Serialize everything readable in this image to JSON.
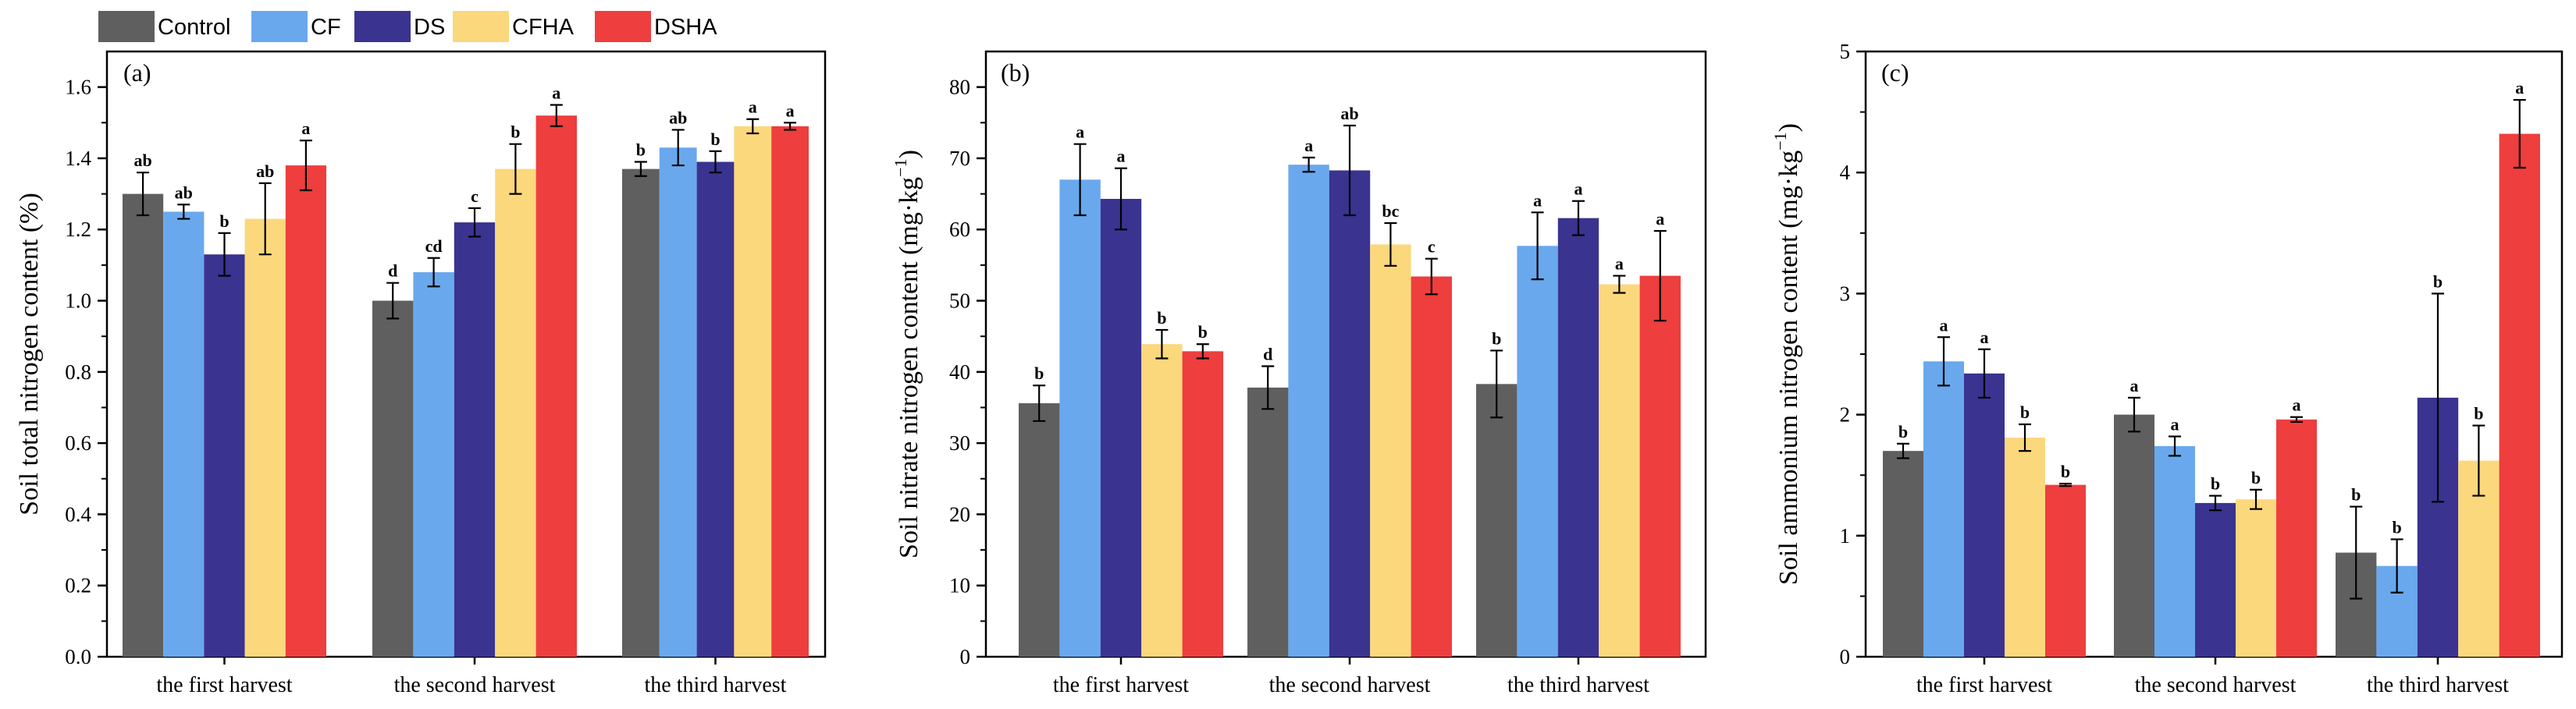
{
  "legend": {
    "items": [
      {
        "name": "Control",
        "color": "#5f5f5f"
      },
      {
        "name": "CF",
        "color": "#69a8ed"
      },
      {
        "name": "DS",
        "color": "#3a3390"
      },
      {
        "name": "CFHA",
        "color": "#fbd87c"
      },
      {
        "name": "DSHA",
        "color": "#ee3e3e"
      }
    ]
  },
  "chart_data": [
    {
      "type": "bar",
      "panel_label": "(a)",
      "ylabel": "Soil total nitrogen content (%)",
      "ylabel_html": "Soil total nitrogen content (%)",
      "ylim": [
        0,
        1.7
      ],
      "yticks": [
        "0.0",
        "0.2",
        "0.4",
        "0.6",
        "0.8",
        "1.0",
        "1.2",
        "1.4",
        "1.6"
      ],
      "ytick_values": [
        0,
        0.2,
        0.4,
        0.6,
        0.8,
        1.0,
        1.2,
        1.4,
        1.6
      ],
      "categories": [
        "the first harvest",
        "the second harvest",
        "the third harvest"
      ],
      "series": [
        {
          "name": "Control",
          "values": [
            1.3,
            1.0,
            1.37
          ],
          "errors": [
            0.06,
            0.05,
            0.02
          ],
          "letters": [
            "ab",
            "d",
            "b"
          ]
        },
        {
          "name": "CF",
          "values": [
            1.25,
            1.08,
            1.43
          ],
          "errors": [
            0.02,
            0.04,
            0.05
          ],
          "letters": [
            "ab",
            "cd",
            "ab"
          ]
        },
        {
          "name": "DS",
          "values": [
            1.13,
            1.22,
            1.39
          ],
          "errors": [
            0.06,
            0.04,
            0.03
          ],
          "letters": [
            "b",
            "c",
            "b"
          ]
        },
        {
          "name": "CFHA",
          "values": [
            1.23,
            1.37,
            1.49
          ],
          "errors": [
            0.1,
            0.07,
            0.02
          ],
          "letters": [
            "ab",
            "b",
            "a"
          ]
        },
        {
          "name": "DSHA",
          "values": [
            1.38,
            1.52,
            1.49
          ],
          "errors": [
            0.07,
            0.03,
            0.01
          ],
          "letters": [
            "a",
            "a",
            "a"
          ]
        }
      ]
    },
    {
      "type": "bar",
      "panel_label": "(b)",
      "ylabel": "Soil nitrate nitrogen content (mg·kg-1)",
      "ylabel_main": "Soil nitrate nitrogen content (mg·kg",
      "ylabel_sup": "−1",
      "ylabel_end": ")",
      "ylim": [
        0,
        85
      ],
      "yticks": [
        "0",
        "10",
        "20",
        "30",
        "40",
        "50",
        "60",
        "70",
        "80"
      ],
      "ytick_values": [
        0,
        10,
        20,
        30,
        40,
        50,
        60,
        70,
        80
      ],
      "categories": [
        "the first harvest",
        "the second harvest",
        "the third harvest"
      ],
      "series": [
        {
          "name": "Control",
          "values": [
            35.6,
            37.8,
            38.3
          ],
          "errors": [
            2.5,
            3.0,
            4.7
          ],
          "letters": [
            "b",
            "d",
            "b"
          ]
        },
        {
          "name": "CF",
          "values": [
            67.0,
            69.1,
            57.7
          ],
          "errors": [
            5.0,
            1.0,
            4.7
          ],
          "letters": [
            "a",
            "a",
            "a"
          ]
        },
        {
          "name": "DS",
          "values": [
            64.3,
            68.3,
            61.6
          ],
          "errors": [
            4.3,
            6.3,
            2.4
          ],
          "letters": [
            "a",
            "ab",
            "a"
          ]
        },
        {
          "name": "CFHA",
          "values": [
            43.9,
            57.9,
            52.3
          ],
          "errors": [
            2.0,
            3.0,
            1.2
          ],
          "letters": [
            "b",
            "bc",
            "a"
          ]
        },
        {
          "name": "DSHA",
          "values": [
            42.9,
            53.4,
            53.5
          ],
          "errors": [
            1.0,
            2.5,
            6.3
          ],
          "letters": [
            "b",
            "c",
            "a"
          ]
        }
      ]
    },
    {
      "type": "bar",
      "panel_label": "(c)",
      "ylabel": "Soil ammonium nitrogen content (mg·kg-1)",
      "ylabel_main": "Soil ammonium nitrogen content (mg·kg",
      "ylabel_sup": "−1",
      "ylabel_end": ")",
      "ylim": [
        0,
        5
      ],
      "yticks": [
        "0",
        "1",
        "2",
        "3",
        "4",
        "5"
      ],
      "ytick_values": [
        0,
        1,
        2,
        3,
        4,
        5
      ],
      "categories": [
        "the first harvest",
        "the second harvest",
        "the third harvest"
      ],
      "series": [
        {
          "name": "Control",
          "values": [
            1.7,
            2.0,
            0.86
          ],
          "errors": [
            0.06,
            0.14,
            0.38
          ],
          "letters": [
            "b",
            "a",
            "b"
          ]
        },
        {
          "name": "CF",
          "values": [
            2.44,
            1.74,
            0.75
          ],
          "errors": [
            0.2,
            0.08,
            0.22
          ],
          "letters": [
            "a",
            "a",
            "b"
          ]
        },
        {
          "name": "DS",
          "values": [
            2.34,
            1.27,
            2.14
          ],
          "errors": [
            0.2,
            0.06,
            0.86
          ],
          "letters": [
            "a",
            "b",
            "b"
          ]
        },
        {
          "name": "CFHA",
          "values": [
            1.81,
            1.3,
            1.62
          ],
          "errors": [
            0.11,
            0.08,
            0.29
          ],
          "letters": [
            "b",
            "b",
            "b"
          ]
        },
        {
          "name": "DSHA",
          "values": [
            1.42,
            1.96,
            4.32
          ],
          "errors": [
            0.01,
            0.02,
            0.28
          ],
          "letters": [
            "b",
            "a",
            "a"
          ]
        }
      ]
    }
  ]
}
